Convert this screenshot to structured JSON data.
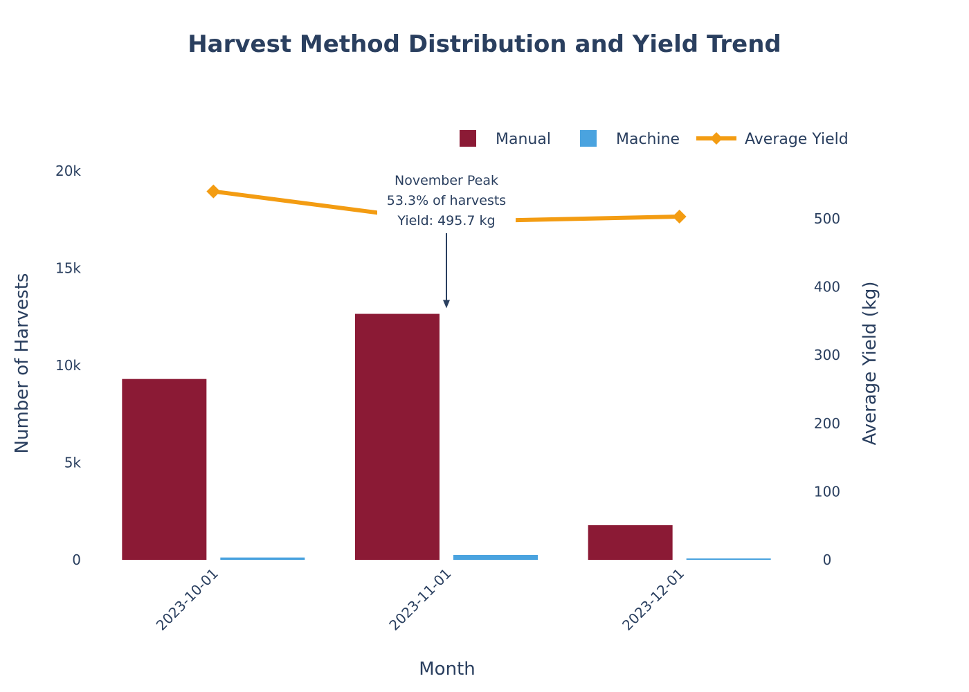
{
  "chart_data": {
    "type": "bar",
    "title": "Harvest Method Distribution and Yield Trend",
    "xlabel": "Month",
    "ylabel": "Number of Harvests",
    "y2label": "Average Yield (kg)",
    "categories": [
      "2023-10-01",
      "2023-11-01",
      "2023-12-01"
    ],
    "ylim": [
      0,
      20000
    ],
    "y_ticks": [
      0,
      5000,
      10000,
      15000,
      20000
    ],
    "y_tick_labels": [
      "0",
      "5k",
      "10k",
      "15k",
      "20k"
    ],
    "y2lim": [
      0,
      570
    ],
    "y2_ticks": [
      0,
      100,
      200,
      300,
      400,
      500
    ],
    "y2_tick_labels": [
      "0",
      "100",
      "200",
      "300",
      "400",
      "500"
    ],
    "series": [
      {
        "name": "Manual",
        "kind": "bar",
        "axis": "y",
        "color": "#8b1a35",
        "values": [
          9300,
          12650,
          1780
        ]
      },
      {
        "name": "Machine",
        "kind": "bar",
        "axis": "y",
        "color": "#4aa3df",
        "values": [
          120,
          250,
          30
        ]
      },
      {
        "name": "Average Yield",
        "kind": "line",
        "axis": "y2",
        "color": "#f39c12",
        "marker": "diamond",
        "values": [
          540,
          495.7,
          503
        ]
      }
    ],
    "legend": {
      "position": "top-right",
      "items": [
        "Manual",
        "Machine",
        "Average Yield"
      ]
    },
    "annotation": {
      "category": "2023-11-01",
      "lines": [
        "November Peak",
        "53.3% of harvests",
        "Yield: 495.7 kg"
      ]
    },
    "grid": false
  }
}
